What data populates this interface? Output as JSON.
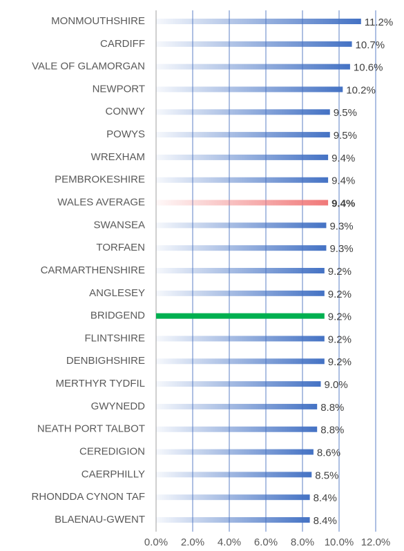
{
  "chart_data": {
    "type": "bar",
    "orientation": "horizontal",
    "categories": [
      "MONMOUTHSHIRE",
      "CARDIFF",
      "VALE OF GLAMORGAN",
      "NEWPORT",
      "CONWY",
      "POWYS",
      "WREXHAM",
      "PEMBROKESHIRE",
      "WALES AVERAGE",
      "SWANSEA",
      "TORFAEN",
      "CARMARTHENSHIRE",
      "ANGLESEY",
      "BRIDGEND",
      "FLINTSHIRE",
      "DENBIGHSHIRE",
      "MERTHYR TYDFIL",
      "GWYNEDD",
      "NEATH PORT TALBOT",
      "CEREDIGION",
      "CAERPHILLY",
      "RHONDDA CYNON TAF",
      "BLAENAU-GWENT"
    ],
    "values": [
      11.2,
      10.7,
      10.6,
      10.2,
      9.5,
      9.5,
      9.4,
      9.4,
      9.4,
      9.3,
      9.3,
      9.2,
      9.2,
      9.2,
      9.2,
      9.2,
      9.0,
      8.8,
      8.8,
      8.6,
      8.5,
      8.4,
      8.4
    ],
    "value_labels": [
      "11.2%",
      "10.7%",
      "10.6%",
      "10.2%",
      "9.5%",
      "9.5%",
      "9.4%",
      "9.4%",
      "9.4%",
      "9.3%",
      "9.3%",
      "9.2%",
      "9.2%",
      "9.2%",
      "9.2%",
      "9.2%",
      "9.0%",
      "8.8%",
      "8.8%",
      "8.6%",
      "8.5%",
      "8.4%",
      "8.4%"
    ],
    "colors": [
      "#4472c4",
      "#4472c4",
      "#4472c4",
      "#4472c4",
      "#4472c4",
      "#4472c4",
      "#4472c4",
      "#4472c4",
      "#f07878",
      "#4472c4",
      "#4472c4",
      "#4472c4",
      "#4472c4",
      "#00b050",
      "#4472c4",
      "#4472c4",
      "#4472c4",
      "#4472c4",
      "#4472c4",
      "#4472c4",
      "#4472c4",
      "#4472c4",
      "#4472c4"
    ],
    "gradient": [
      true,
      true,
      true,
      true,
      true,
      true,
      true,
      true,
      true,
      true,
      true,
      true,
      true,
      false,
      true,
      true,
      true,
      true,
      true,
      true,
      true,
      true,
      true
    ],
    "bold_index": 8,
    "xlim": [
      0,
      12
    ],
    "xticks": [
      {
        "value": 0,
        "label": "0.0%"
      },
      {
        "value": 2,
        "label": "2.0%"
      },
      {
        "value": 4,
        "label": "4.0%"
      },
      {
        "value": 6,
        "label": "6.0%"
      },
      {
        "value": 8,
        "label": "8.0%"
      },
      {
        "value": 10,
        "label": "10.0%"
      },
      {
        "value": 12,
        "label": "12.0%"
      }
    ],
    "grid": true
  }
}
